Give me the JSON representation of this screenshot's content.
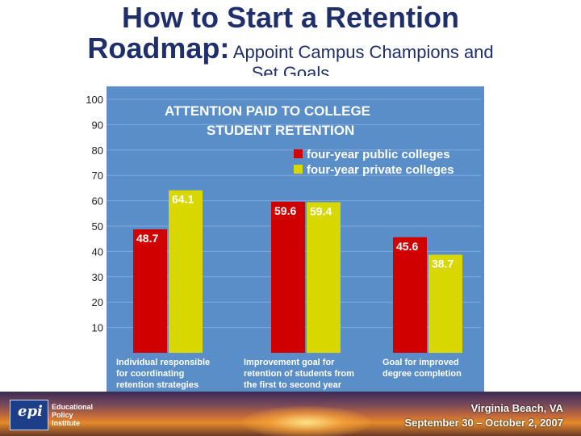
{
  "slide": {
    "title_line1": "How to Start a Retention",
    "title_line2_main": "Roadmap:",
    "title_line2_sub": "Appoint Campus Champions and",
    "title_line3": "Set Goals"
  },
  "footer": {
    "logo_mark": "epi",
    "logo_name": [
      "Educational",
      "Policy",
      "Institute"
    ],
    "location": "Virginia Beach, VA",
    "dates": "September 30 – October 2, 2007"
  },
  "chart_data": {
    "type": "bar",
    "title": [
      "ATTENTION PAID TO COLLEGE",
      "STUDENT RETENTION"
    ],
    "categories": [
      [
        "Individual responsible",
        "for coordinating",
        "retention strategies"
      ],
      [
        "Improvement goal for",
        "retention of students from",
        "the first to second year"
      ],
      [
        "Goal for improved",
        "degree completion"
      ]
    ],
    "series": [
      {
        "name": "four-year public colleges",
        "values": [
          48.7,
          59.6,
          45.6
        ],
        "color": "#d00000"
      },
      {
        "name": "four-year private colleges",
        "values": [
          64.1,
          59.4,
          38.7
        ],
        "color": "#d8d800"
      }
    ],
    "ylim": [
      0,
      100
    ],
    "yticks": [
      100,
      90,
      80,
      70,
      60,
      50,
      40,
      30,
      20,
      10
    ],
    "grid": true,
    "legend_position": "top-right",
    "background": "#5a8ec8"
  }
}
